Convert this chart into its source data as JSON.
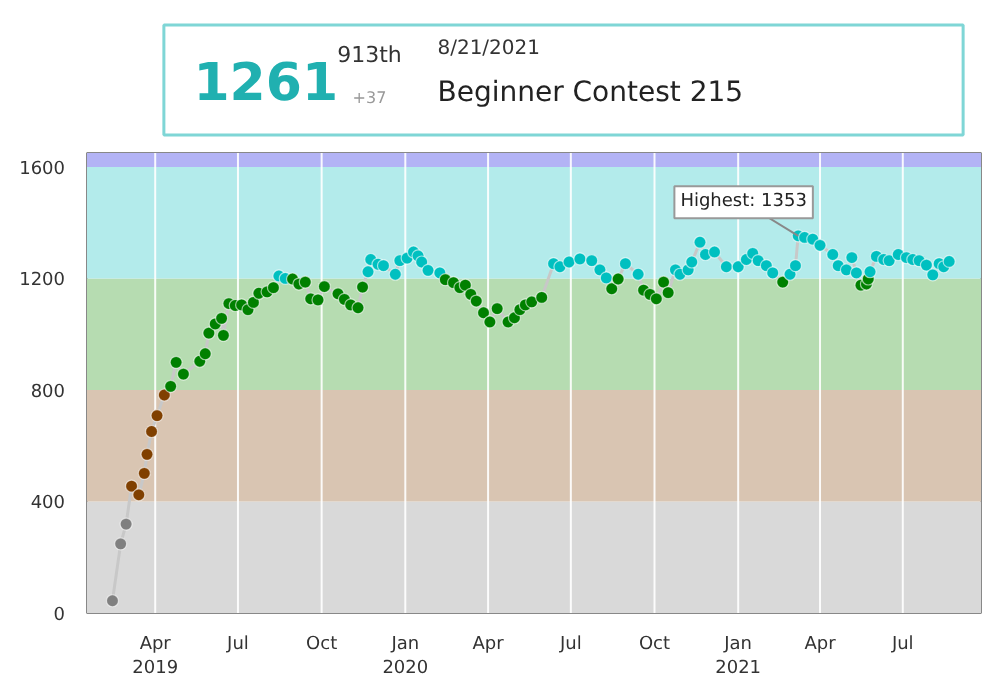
{
  "chart_data": {
    "type": "line",
    "marker": "circle",
    "grid": "x",
    "x": [
      "2019-02-13",
      "2019-02-22",
      "2019-02-28",
      "2019-03-06",
      "2019-03-14",
      "2019-03-20",
      "2019-03-23",
      "2019-03-28",
      "2019-04-03",
      "2019-04-11",
      "2019-04-18",
      "2019-04-24",
      "2019-05-02",
      "2019-05-20",
      "2019-05-26",
      "2019-05-30",
      "2019-06-06",
      "2019-06-13",
      "2019-06-15",
      "2019-06-21",
      "2019-06-28",
      "2019-07-05",
      "2019-07-12",
      "2019-07-18",
      "2019-07-24",
      "2019-08-02",
      "2019-08-09",
      "2019-08-15",
      "2019-08-22",
      "2019-08-30",
      "2019-09-06",
      "2019-09-13",
      "2019-09-19",
      "2019-09-27",
      "2019-10-04",
      "2019-10-19",
      "2019-10-26",
      "2019-11-02",
      "2019-11-10",
      "2019-11-15",
      "2019-11-21",
      "2019-11-24",
      "2019-12-02",
      "2019-12-08",
      "2019-12-21",
      "2019-12-26",
      "2020-01-03",
      "2020-01-10",
      "2020-01-15",
      "2020-01-19",
      "2020-01-26",
      "2020-02-08",
      "2020-02-14",
      "2020-02-23",
      "2020-03-01",
      "2020-03-07",
      "2020-03-13",
      "2020-03-19",
      "2020-03-27",
      "2020-04-03",
      "2020-04-11",
      "2020-04-23",
      "2020-04-30",
      "2020-05-06",
      "2020-05-12",
      "2020-05-19",
      "2020-05-30",
      "2020-06-12",
      "2020-06-19",
      "2020-06-29",
      "2020-07-11",
      "2020-07-24",
      "2020-08-02",
      "2020-08-09",
      "2020-08-15",
      "2020-08-22",
      "2020-08-30",
      "2020-09-13",
      "2020-09-19",
      "2020-09-26",
      "2020-10-03",
      "2020-10-11",
      "2020-10-16",
      "2020-10-24",
      "2020-10-29",
      "2020-11-07",
      "2020-11-11",
      "2020-11-20",
      "2020-11-26",
      "2020-12-06",
      "2020-12-19",
      "2021-01-01",
      "2021-01-10",
      "2021-01-17",
      "2021-01-23",
      "2021-02-01",
      "2021-02-08",
      "2021-02-19",
      "2021-02-27",
      "2021-03-05",
      "2021-03-08",
      "2021-03-15",
      "2021-03-24",
      "2021-04-01",
      "2021-04-15",
      "2021-04-21",
      "2021-04-30",
      "2021-05-06",
      "2021-05-11",
      "2021-05-16",
      "2021-05-22",
      "2021-05-24",
      "2021-05-26",
      "2021-06-02",
      "2021-06-10",
      "2021-06-16",
      "2021-06-26",
      "2021-07-05",
      "2021-07-12",
      "2021-07-19",
      "2021-07-27",
      "2021-08-03",
      "2021-08-10",
      "2021-08-15",
      "2021-08-21"
    ],
    "series": [
      {
        "color": "#c8c8c8",
        "values": [
          44,
          248,
          319,
          455,
          424,
          501,
          569,
          651,
          708,
          782,
          813,
          899,
          857,
          903,
          930,
          1004,
          1037,
          1057,
          996,
          1110,
          1103,
          1105,
          1088,
          1114,
          1147,
          1152,
          1167,
          1209,
          1200,
          1198,
          1180,
          1187,
          1127,
          1123,
          1171,
          1145,
          1125,
          1105,
          1095,
          1169,
          1224,
          1268,
          1251,
          1246,
          1215,
          1264,
          1273,
          1295,
          1281,
          1259,
          1229,
          1220,
          1196,
          1185,
          1167,
          1176,
          1143,
          1119,
          1077,
          1044,
          1092,
          1044,
          1059,
          1088,
          1105,
          1116,
          1132,
          1253,
          1242,
          1259,
          1270,
          1264,
          1231,
          1202,
          1163,
          1198,
          1253,
          1215,
          1158,
          1143,
          1127,
          1187,
          1149,
          1231,
          1215,
          1231,
          1259,
          1330,
          1286,
          1295,
          1242,
          1242,
          1268,
          1290,
          1264,
          1246,
          1220,
          1187,
          1215,
          1246,
          1353,
          1347,
          1341,
          1319,
          1286,
          1246,
          1231,
          1275,
          1220,
          1176,
          1180,
          1198,
          1224,
          1279,
          1268,
          1264,
          1286,
          1275,
          1268,
          1264,
          1248,
          1213,
          1253,
          1242,
          1261
        ],
        "colors": [
          "#808080",
          "#808080",
          "#808080",
          "#804000",
          "#804000",
          "#804000",
          "#804000",
          "#804000",
          "#804000",
          "#804000",
          "#008000",
          "#008000",
          "#008000",
          "#008000",
          "#008000",
          "#008000",
          "#008000",
          "#008000",
          "#008000",
          "#008000",
          "#008000",
          "#008000",
          "#008000",
          "#008000",
          "#008000",
          "#008000",
          "#008000",
          "#00c0c0",
          "#00c0c0",
          "#008000",
          "#008000",
          "#008000",
          "#008000",
          "#008000",
          "#008000",
          "#008000",
          "#008000",
          "#008000",
          "#008000",
          "#008000",
          "#00c0c0",
          "#00c0c0",
          "#00c0c0",
          "#00c0c0",
          "#00c0c0",
          "#00c0c0",
          "#00c0c0",
          "#00c0c0",
          "#00c0c0",
          "#00c0c0",
          "#00c0c0",
          "#00c0c0",
          "#008000",
          "#008000",
          "#008000",
          "#008000",
          "#008000",
          "#008000",
          "#008000",
          "#008000",
          "#008000",
          "#008000",
          "#008000",
          "#008000",
          "#008000",
          "#008000",
          "#008000",
          "#00c0c0",
          "#00c0c0",
          "#00c0c0",
          "#00c0c0",
          "#00c0c0",
          "#00c0c0",
          "#00c0c0",
          "#008000",
          "#008000",
          "#00c0c0",
          "#00c0c0",
          "#008000",
          "#008000",
          "#008000",
          "#008000",
          "#008000",
          "#00c0c0",
          "#00c0c0",
          "#00c0c0",
          "#00c0c0",
          "#00c0c0",
          "#00c0c0",
          "#00c0c0",
          "#00c0c0",
          "#00c0c0",
          "#00c0c0",
          "#00c0c0",
          "#00c0c0",
          "#00c0c0",
          "#00c0c0",
          "#008000",
          "#00c0c0",
          "#00c0c0",
          "#00c0c0",
          "#00c0c0",
          "#00c0c0",
          "#00c0c0",
          "#00c0c0",
          "#00c0c0",
          "#00c0c0",
          "#00c0c0",
          "#00c0c0",
          "#008000",
          "#008000",
          "#008000",
          "#00c0c0",
          "#00c0c0",
          "#00c0c0",
          "#00c0c0",
          "#00c0c0",
          "#00c0c0",
          "#00c0c0",
          "#00c0c0",
          "#00c0c0",
          "#00c0c0",
          "#00c0c0",
          "#00c0c0",
          "#00c0c0"
        ]
      }
    ],
    "xlim": [
      "2019-01-16",
      "2021-09-25"
    ],
    "xticks": [
      {
        "value": "2019-04-01",
        "label": "Apr\n2019"
      },
      {
        "value": "2019-07-01",
        "label": "Jul"
      },
      {
        "value": "2019-10-01",
        "label": "Oct"
      },
      {
        "value": "2020-01-01",
        "label": "Jan\n2020"
      },
      {
        "value": "2020-04-01",
        "label": "Apr"
      },
      {
        "value": "2020-07-01",
        "label": "Jul"
      },
      {
        "value": "2020-10-01",
        "label": "Oct"
      },
      {
        "value": "2021-01-01",
        "label": "Jan\n2021"
      },
      {
        "value": "2021-04-01",
        "label": "Apr"
      },
      {
        "value": "2021-07-01",
        "label": "Jul"
      }
    ],
    "ylim": [
      0,
      1650
    ],
    "yticks": [
      0,
      400,
      800,
      1200,
      1600
    ],
    "bands": [
      {
        "axis": "y",
        "from": 0,
        "to": 400,
        "color": "#d9d9d9"
      },
      {
        "axis": "y",
        "from": 400,
        "to": 800,
        "color": "#d9c5b2"
      },
      {
        "axis": "y",
        "from": 800,
        "to": 1200,
        "color": "#b6dcb1"
      },
      {
        "axis": "y",
        "from": 1200,
        "to": 1600,
        "color": "#b3ebeb"
      },
      {
        "axis": "y",
        "from": 1600,
        "to": 1650,
        "color": "#b3b3f5"
      }
    ],
    "annotations": [
      {
        "text": "Highest: 1353",
        "x": "2021-03-08",
        "y": 1353
      },
      "1261",
      "913th",
      "+37",
      "8/21/2021",
      "Beginner Contest 215"
    ]
  }
}
